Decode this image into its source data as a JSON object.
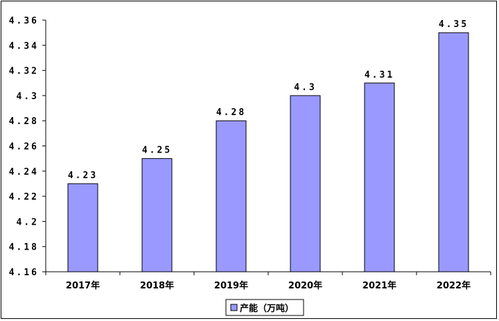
{
  "chart_data": {
    "type": "bar",
    "categories": [
      "2017年",
      "2018年",
      "2019年",
      "2020年",
      "2021年",
      "2022年"
    ],
    "series": [
      {
        "name": "产能（万吨）",
        "values": [
          4.23,
          4.25,
          4.28,
          4.3,
          4.31,
          4.35
        ]
      }
    ],
    "data_labels": [
      "4.23",
      "4.25",
      "4.28",
      "4.3",
      "4.31",
      "4.35"
    ],
    "y_ticks": [
      4.16,
      4.18,
      4.2,
      4.22,
      4.24,
      4.26,
      4.28,
      4.3,
      4.32,
      4.34,
      4.36
    ],
    "y_tick_labels": [
      "4.16",
      "4.18",
      "4.2",
      "4.22",
      "4.24",
      "4.26",
      "4.28",
      "4.3",
      "4.32",
      "4.34",
      "4.36"
    ],
    "ylim": [
      4.16,
      4.36
    ],
    "grid": false,
    "legend_position": "bottom",
    "colors": {
      "bar_fill": "#9999ff",
      "bar_stroke": "#000000"
    },
    "title": "",
    "xlabel": "",
    "ylabel": ""
  }
}
